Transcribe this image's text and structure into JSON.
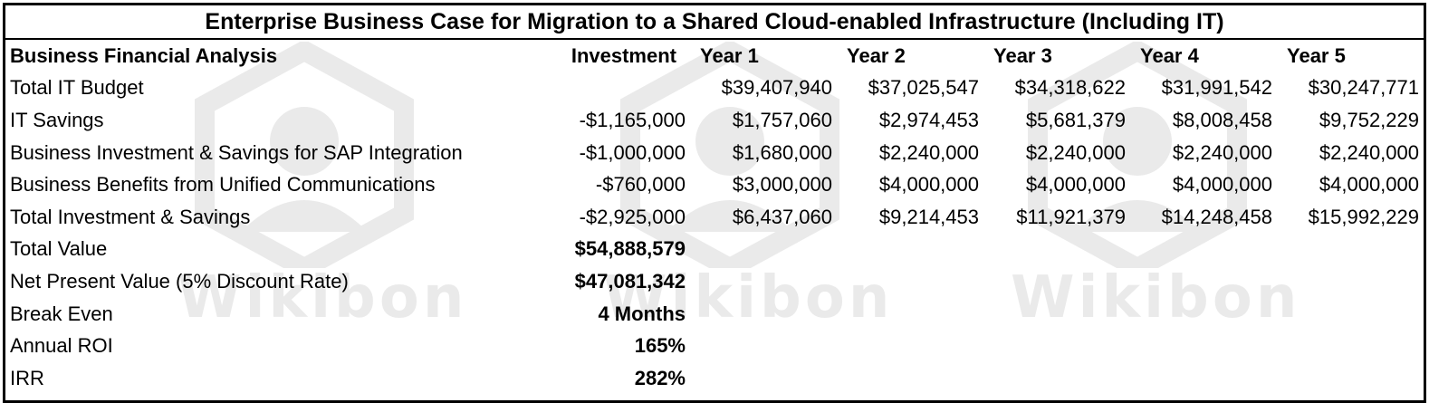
{
  "title": "Enterprise Business Case for Migration to a Shared Cloud-enabled Infrastructure (Including IT)",
  "watermark_text": "Wikibon",
  "headers": [
    "Business Financial Analysis",
    "Investment",
    "Year 1",
    "Year 2",
    "Year 3",
    "Year 4",
    "Year 5"
  ],
  "rows": [
    {
      "label": "Total IT Budget",
      "investment": "",
      "years": [
        "$39,407,940",
        "$37,025,547",
        "$34,318,622",
        "$31,991,542",
        "$30,247,771"
      ]
    },
    {
      "label": "IT Savings",
      "investment": "-$1,165,000",
      "years": [
        "$1,757,060",
        "$2,974,453",
        "$5,681,379",
        "$8,008,458",
        "$9,752,229"
      ]
    },
    {
      "label": "Business Investment & Savings for SAP Integration",
      "investment": "-$1,000,000",
      "years": [
        "$1,680,000",
        "$2,240,000",
        "$2,240,000",
        "$2,240,000",
        "$2,240,000"
      ]
    },
    {
      "label": "Business Benefits from Unified Communications",
      "investment": "-$760,000",
      "years": [
        "$3,000,000",
        "$4,000,000",
        "$4,000,000",
        "$4,000,000",
        "$4,000,000"
      ]
    },
    {
      "label": "Total Investment & Savings",
      "investment": "-$2,925,000",
      "years": [
        "$6,437,060",
        "$9,214,453",
        "$11,921,379",
        "$14,248,458",
        "$15,992,229"
      ]
    }
  ],
  "summary": [
    {
      "label": "Total Value",
      "value": "$54,888,579"
    },
    {
      "label": "Net Present Value (5% Discount Rate)",
      "value": "$47,081,342"
    },
    {
      "label": "Break Even",
      "value": "4 Months"
    },
    {
      "label": "Annual ROI",
      "value": "165%"
    },
    {
      "label": "IRR",
      "value": "282%"
    }
  ]
}
